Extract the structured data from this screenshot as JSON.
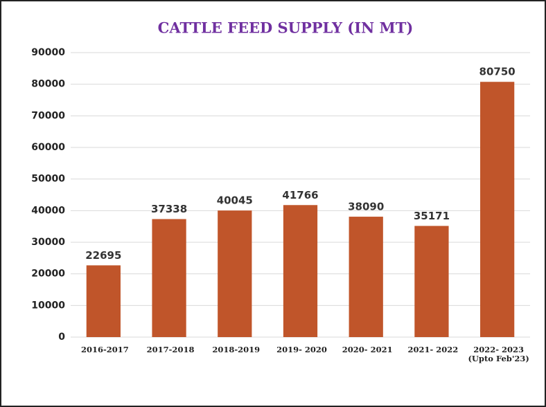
{
  "chart_data": {
    "type": "bar",
    "title": "CATTLE FEED SUPPLY (IN MT)",
    "categories": [
      "2016-2017",
      "2017-2018",
      "2018-2019",
      "2019- 2020",
      "2020- 2021",
      "2021- 2022",
      "2022- 2023\n(Upto Feb'23)"
    ],
    "values": [
      22695,
      37338,
      40045,
      41766,
      38090,
      35171,
      80750
    ],
    "color": "#c0552a",
    "ylim": [
      0,
      90000
    ],
    "yticks": [
      0,
      10000,
      20000,
      30000,
      40000,
      50000,
      60000,
      70000,
      80000,
      90000
    ],
    "grid": true
  }
}
